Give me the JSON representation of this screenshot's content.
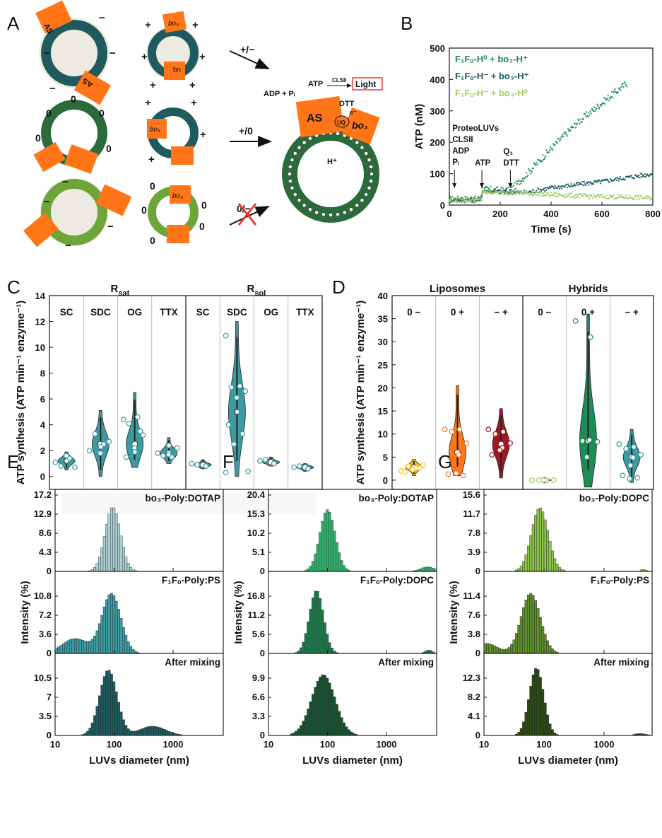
{
  "panels": {
    "A": "A",
    "B": "B",
    "C": "C",
    "D": "D",
    "E": "E",
    "F": "F",
    "G": "G"
  },
  "colors": {
    "teal_dark": "#1f5a5e",
    "teal": "#3d9aa0",
    "green": "#1e8c57",
    "green_dark": "#2b6b3b",
    "light_green": "#9ccc65",
    "olive": "#6ea53a",
    "orange": "#ff7518",
    "dark_red": "#a31820",
    "yellow": "#f5c518",
    "lightblue": "#a9cfd3"
  },
  "schematic": {
    "arrow_labels": [
      "+/−",
      "+/0",
      "0/−"
    ],
    "enzymes": {
      "as": "AS",
      "bo3": "bo₃",
      "uq": "uq"
    },
    "charges": {
      "minus": "−",
      "plus": "+",
      "zero": "0"
    },
    "assembled": {
      "adp": "ADP + Pᵢ",
      "atp": "ATP",
      "clsii": "CLSII",
      "light": "Light",
      "dtt": "DTT",
      "electron": "e⁻",
      "proton": "H⁺",
      "as": "AS",
      "bo3": "bo₃",
      "uq": "UQ"
    }
  },
  "chart_data": [
    {
      "panel": "B",
      "type": "scatter",
      "ylabel": "ATP (nM)",
      "xlabel": "Time (s)",
      "xlim": [
        0,
        800
      ],
      "ylim": [
        0,
        500
      ],
      "xticks": [
        "0",
        "200",
        "400",
        "600",
        "800"
      ],
      "yticks": [
        "0",
        "100",
        "200",
        "300",
        "400",
        "500"
      ],
      "series": [
        {
          "name": "F₁Fₒ-H⁰ + bo₃-H⁺",
          "color": "#1e8c57",
          "points": [
            [
              0,
              18
            ],
            [
              125,
              18
            ],
            [
              130,
              50
            ],
            [
              240,
              45
            ],
            [
              300,
              95
            ],
            [
              400,
              180
            ],
            [
              500,
              260
            ],
            [
              600,
              325
            ],
            [
              700,
              390
            ]
          ]
        },
        {
          "name": "F₁Fₒ-H⁻ + bo₃-H⁺",
          "color": "#1f5a5e",
          "points": [
            [
              0,
              18
            ],
            [
              125,
              18
            ],
            [
              130,
              45
            ],
            [
              300,
              40
            ],
            [
              400,
              55
            ],
            [
              500,
              65
            ],
            [
              600,
              75
            ],
            [
              700,
              88
            ],
            [
              800,
              100
            ]
          ]
        },
        {
          "name": "F₁Fₒ-H⁻ + bo₃-H⁰",
          "color": "#9ccc65",
          "points": [
            [
              0,
              16
            ],
            [
              125,
              16
            ],
            [
              130,
              42
            ],
            [
              300,
              38
            ],
            [
              400,
              33
            ],
            [
              500,
              30
            ],
            [
              600,
              27
            ],
            [
              700,
              25
            ],
            [
              800,
              23
            ]
          ]
        }
      ],
      "annotations": [
        {
          "lines": [
            "ProteoLUVs",
            "CLSII",
            "ADP",
            "Pᵢ"
          ],
          "x": 20
        },
        {
          "lines": [
            "ATP"
          ],
          "x": 128
        },
        {
          "lines": [
            "Q₁",
            "DTT"
          ],
          "x": 240
        }
      ]
    },
    {
      "panel": "C",
      "type": "violin",
      "ylabel": "ATP synthesis (ATP min⁻¹ enzyme⁻¹)",
      "ylim": [
        -1,
        14
      ],
      "yticks": [
        "0",
        "2",
        "4",
        "6",
        "8",
        "10",
        "12",
        "14"
      ],
      "groups": [
        {
          "label": "R_sat",
          "sub": "sat"
        },
        {
          "label": "R_sol",
          "sub": "sol"
        }
      ],
      "categories": [
        "SC",
        "SDC",
        "OG",
        "TTX",
        "SC",
        "SDC",
        "OG",
        "TTX"
      ],
      "medians": [
        1.2,
        2.5,
        2.5,
        1.8,
        0.9,
        5.0,
        1.1,
        0.7
      ],
      "ranges": [
        [
          0.5,
          1.9
        ],
        [
          0,
          5.1
        ],
        [
          0.7,
          6.5
        ],
        [
          1,
          3
        ],
        [
          0.6,
          1.3
        ],
        [
          0,
          12
        ],
        [
          0.8,
          1.5
        ],
        [
          0.4,
          1
        ]
      ],
      "points": [
        [
          1.1,
          1.4,
          0.8,
          0.7,
          1.6,
          1.2
        ],
        [
          2.0,
          2.5,
          3.3,
          2.7,
          1.8,
          2.3
        ],
        [
          4.4,
          4.6,
          4.1,
          3.2,
          2.2,
          1.9,
          1.5,
          3.5
        ],
        [
          1.8,
          1.5,
          1.6,
          2.2,
          1.7,
          2.4
        ],
        [
          1.0,
          0.8,
          0.9
        ],
        [
          10.9,
          7.0,
          6.9,
          6.6,
          6.1,
          5.0,
          4.0,
          3.3,
          2.5,
          0.4,
          0.3
        ],
        [
          1.2,
          1.0,
          1.3
        ],
        [
          0.7,
          0.6,
          0.8
        ]
      ],
      "color": "#3d9aa0"
    },
    {
      "panel": "D",
      "type": "violin",
      "ylabel": "ATP synthesis (ATP min⁻¹ enzyme⁻¹)",
      "ylim": [
        -2,
        40
      ],
      "yticks": [
        "0",
        "5",
        "10",
        "15",
        "20",
        "25",
        "30",
        "35",
        "40"
      ],
      "groups": [
        {
          "label": "Liposomes"
        },
        {
          "label": "Hybrids"
        }
      ],
      "categories": [
        "0 −",
        "0 +",
        "− +",
        "0 −",
        "0 +",
        "− +"
      ],
      "medians": [
        2.8,
        6.0,
        7.8,
        0.0,
        8.5,
        5.0
      ],
      "ranges": [
        [
          1,
          4.5
        ],
        [
          1,
          20.5
        ],
        [
          0.5,
          15.5
        ],
        [
          -0.2,
          0.2
        ],
        [
          -1.5,
          36
        ],
        [
          -0.5,
          11
        ]
      ],
      "points": [
        [
          2.0,
          2.5,
          3.0,
          3.3,
          2.7,
          2.3,
          1.8,
          2.6
        ],
        [
          11,
          11,
          10.5,
          8,
          5.5,
          1.5,
          1.3,
          1.0
        ],
        [
          11,
          10.5,
          10,
          8,
          7,
          6.5,
          5.5
        ],
        [
          0,
          0,
          0,
          0,
          0,
          0
        ],
        [
          34.5,
          31,
          8.5,
          8.3,
          8.7,
          5.0
        ],
        [
          7.8,
          7.2,
          6.8,
          5.5,
          4.9,
          3.2,
          1,
          0.5,
          0.3
        ]
      ],
      "colors": [
        "#f5c518",
        "#ff7518",
        "#a31820",
        "#9ccc65",
        "#1e8c57",
        "#3d9aa0"
      ]
    },
    {
      "panel": "E",
      "type": "bar",
      "xlabel": "LUVs diameter (nm)",
      "ylabel": "Intensity (%)",
      "xticks": [
        "10",
        "100",
        "1000"
      ],
      "xscale": "log",
      "subplots": [
        {
          "label": "bo₃-Poly:DOTAP",
          "yticks": [
            "0",
            "4.3",
            "8.6",
            "12.9",
            "17.2"
          ],
          "ymax": 17.2,
          "color": "#a9cfd3",
          "bins": [
            {
              "c": 70,
              "s": 16,
              "v": 1.2
            },
            {
              "c": 1300,
              "s": 0,
              "v": 0.4
            },
            {
              "c": 2800,
              "s": 0,
              "v": 0.8
            },
            {
              "c": 5000,
              "s": 0,
              "v": 0.6
            }
          ],
          "mode": [
            95,
            0.13,
            14.5
          ]
        },
        {
          "label": "F₁Fₒ-Poly:PS",
          "yticks": [
            "0",
            "3.6",
            "7.2",
            "10.8"
          ],
          "ymax": 14.4,
          "color": "#3d9aa0",
          "mode": [
            90,
            0.16,
            11.3
          ],
          "shoulder": [
            22,
            0.22,
            2.8
          ]
        },
        {
          "label": "After mixing",
          "yticks": [
            "0",
            "3.5",
            "7",
            "10.5"
          ],
          "ymax": 14,
          "color": "#1f5a5e",
          "mode": [
            80,
            0.15,
            12.0
          ],
          "shoulder": [
            450,
            0.22,
            1.7
          ]
        }
      ]
    },
    {
      "panel": "F",
      "type": "bar",
      "xlabel": "LUVs diameter (nm)",
      "ylabel": "Intensity (%)",
      "xticks": [
        "10",
        "100",
        "1000"
      ],
      "xscale": "log",
      "subplots": [
        {
          "label": "bo₃-Poly:DOTAP",
          "yticks": [
            "0",
            "5.1",
            "10.2",
            "15.3",
            "20.4"
          ],
          "ymax": 20.4,
          "color": "#35b06e",
          "mode": [
            100,
            0.13,
            16.5
          ],
          "shoulder": [
            5000,
            0.12,
            1.2
          ]
        },
        {
          "label": "F₁Fₒ-Poly:DOPC",
          "yticks": [
            "0",
            "5.6",
            "11.2",
            "16.8"
          ],
          "ymax": 22.4,
          "color": "#1f7a4a",
          "mode": [
            65,
            0.12,
            18.5
          ],
          "shoulder": [
            5200,
            0.06,
            1.0
          ]
        },
        {
          "label": "After mixing",
          "yticks": [
            "0",
            "3.3",
            "6.6",
            "9.9"
          ],
          "ymax": 13.2,
          "color": "#1a5233",
          "mode": [
            85,
            0.2,
            10.5
          ]
        }
      ]
    },
    {
      "panel": "G",
      "type": "bar",
      "xlabel": "LUVs diameter (nm)",
      "ylabel": "Intensity (%)",
      "xticks": [
        "10",
        "100",
        "1000"
      ],
      "xscale": "log",
      "subplots": [
        {
          "label": "bo₃-Poly:DOPC",
          "yticks": [
            "0",
            "3.9",
            "7.8",
            "11.7",
            "15.6"
          ],
          "ymax": 15.6,
          "color": "#8bc34a",
          "mode": [
            85,
            0.14,
            13.0
          ],
          "shoulder": [
            4500,
            0.05,
            0.4
          ]
        },
        {
          "label": "F₁Fₒ-Poly:PS",
          "yticks": [
            "0",
            "3.8",
            "7.6",
            "11.4"
          ],
          "ymax": 15.2,
          "color": "#5e8f2d",
          "mode": [
            60,
            0.16,
            12.0
          ],
          "shoulder": [
            11,
            0.18,
            2.0
          ]
        },
        {
          "label": "After mixing",
          "yticks": [
            "0",
            "4.1",
            "8.2",
            "12.3"
          ],
          "ymax": 16.4,
          "color": "#2c4a16",
          "mode": [
            75,
            0.12,
            14.5
          ],
          "shoulder": [
            4000,
            0.1,
            0.4
          ]
        }
      ]
    }
  ]
}
